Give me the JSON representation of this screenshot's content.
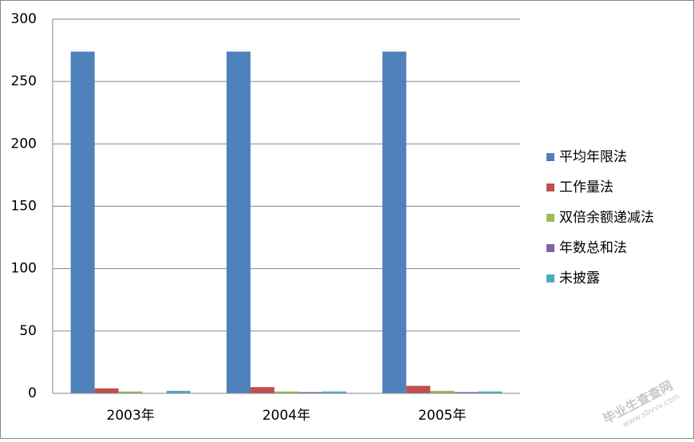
{
  "chart_data": {
    "type": "bar",
    "categories": [
      "2003年",
      "2004年",
      "2005年"
    ],
    "series": [
      {
        "name": "平均年限法",
        "color": "#4f81bd",
        "values": [
          274,
          274,
          274
        ]
      },
      {
        "name": "工作量法",
        "color": "#c0504d",
        "values": [
          4,
          5,
          6
        ]
      },
      {
        "name": "双倍余额递减法",
        "color": "#9bbb59",
        "values": [
          1.5,
          1.5,
          2
        ]
      },
      {
        "name": "年数总和法",
        "color": "#8064a2",
        "values": [
          0,
          1,
          1
        ]
      },
      {
        "name": "未披露",
        "color": "#4bacc6",
        "values": [
          2,
          1.5,
          1.5
        ]
      }
    ],
    "ylim": [
      0,
      300
    ],
    "yticks": [
      0,
      50,
      100,
      150,
      200,
      250,
      300
    ],
    "grid": true,
    "legend": "right"
  },
  "watermark": {
    "name": "毕业生查查网",
    "url": "www.sbvvv.com"
  }
}
